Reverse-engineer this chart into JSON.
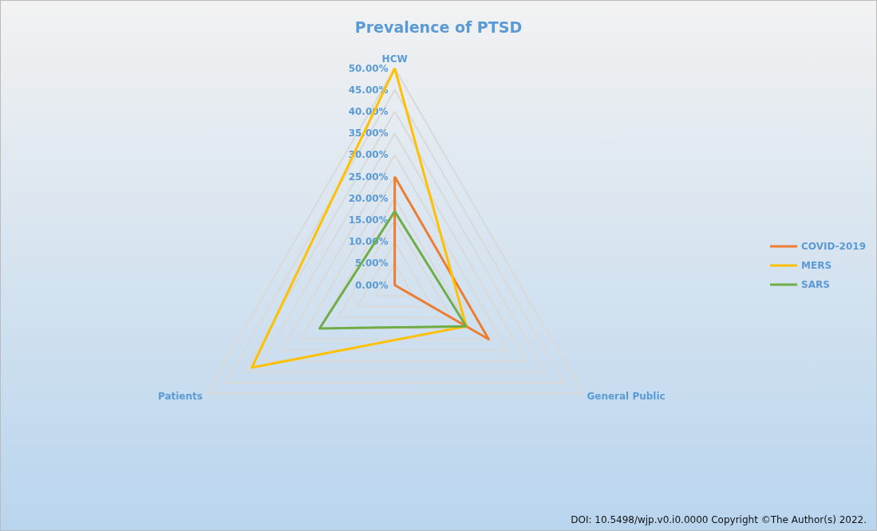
{
  "chart_data": {
    "type": "radar",
    "title": "Prevalence of PTSD",
    "categories": [
      "HCW",
      "General Public",
      "Patients"
    ],
    "series": [
      {
        "name": "COVID-2019",
        "color": "#ed7d31",
        "values": [
          25,
          25,
          0
        ]
      },
      {
        "name": "MERS",
        "color": "#ffc000",
        "values": [
          50,
          19,
          38
        ]
      },
      {
        "name": "SARS",
        "color": "#70ad47",
        "values": [
          17,
          19,
          20
        ]
      }
    ],
    "ylim": [
      0,
      50
    ],
    "yticks": [
      {
        "value": 0,
        "label": "0.00%"
      },
      {
        "value": 5,
        "label": "5.00%"
      },
      {
        "value": 10,
        "label": "10.00%"
      },
      {
        "value": 15,
        "label": "15.00%"
      },
      {
        "value": 20,
        "label": "20.00%"
      },
      {
        "value": 25,
        "label": "25.00%"
      },
      {
        "value": 30,
        "label": "30.00%"
      },
      {
        "value": 35,
        "label": "35.00%"
      },
      {
        "value": 40,
        "label": "40.00%"
      },
      {
        "value": 45,
        "label": "45.00%"
      },
      {
        "value": 50,
        "label": "50.00%"
      }
    ],
    "grid": true,
    "legend": "right",
    "marker": "none",
    "line_style": "solid",
    "annotations": [
      "DOI: 10.5498/wjp.v0.i0.0000  Copyright ©The Author(s) 2022."
    ]
  }
}
